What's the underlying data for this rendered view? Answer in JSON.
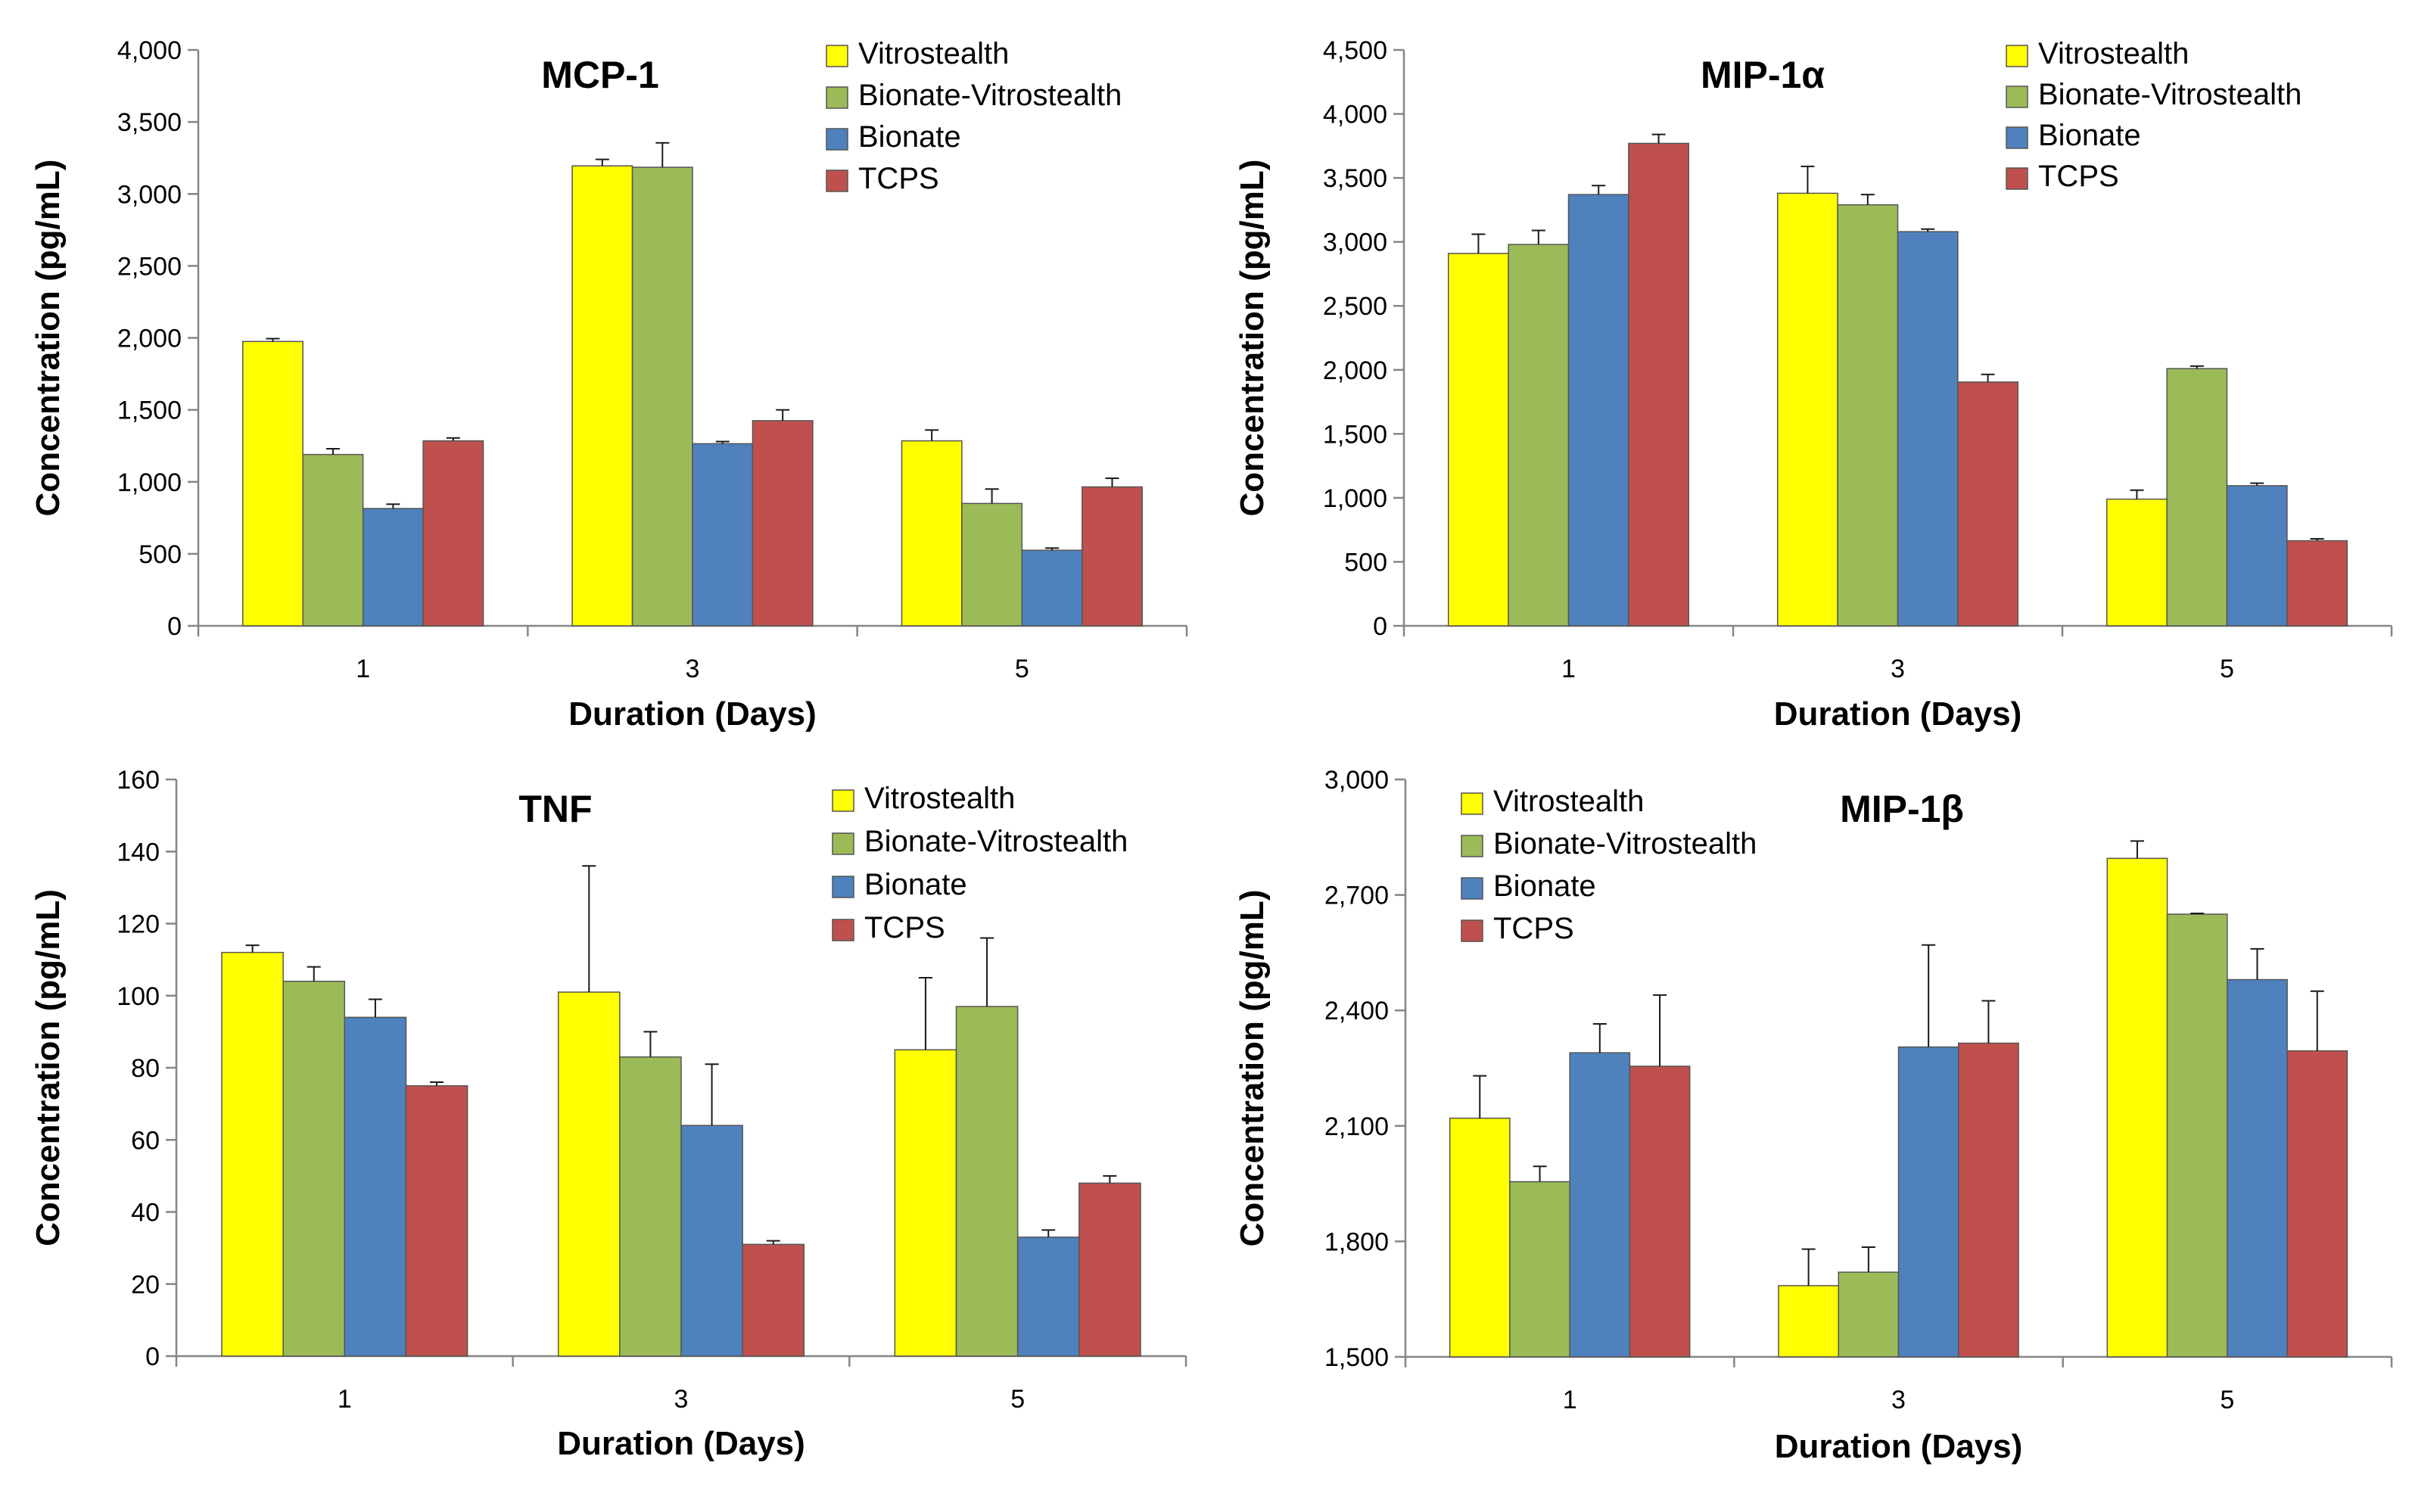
{
  "figure": {
    "colors": {
      "Vitrostealth": "#FFFF00",
      "Bionate-Vitrostealth": "#9BBB59",
      "Bionate": "#4F81BD",
      "TCPS": "#C0504D"
    },
    "charts": [
      {
        "type": "bar",
        "title": "MCP-1",
        "xlabel": "Duration (Days)",
        "ylabel": "Concentration (pg/mL)",
        "categories": [
          "1",
          "3",
          "5"
        ],
        "ylim": [
          0,
          4000
        ],
        "yticks": [
          "0",
          "500",
          "1,000",
          "1,500",
          "2,000",
          "2,500",
          "3,000",
          "3,500",
          "4,000"
        ],
        "legend_position": "top-right",
        "series": [
          {
            "name": "Vitrostealth",
            "values": [
              1975,
              3195,
              1285
            ],
            "errors": [
              20,
              45,
              75
            ]
          },
          {
            "name": "Bionate-Vitrostealth",
            "values": [
              1190,
              3185,
              850
            ],
            "errors": [
              40,
              170,
              100
            ]
          },
          {
            "name": "Bionate",
            "values": [
              815,
              1265,
              525
            ],
            "errors": [
              30,
              15,
              15
            ]
          },
          {
            "name": "TCPS",
            "values": [
              1285,
              1425,
              965
            ],
            "errors": [
              20,
              75,
              60
            ]
          }
        ]
      },
      {
        "type": "bar",
        "title": "MIP-1α",
        "xlabel": "Duration (Days)",
        "ylabel": "Concentration (pg/mL)",
        "categories": [
          "1",
          "3",
          "5"
        ],
        "ylim": [
          0,
          4500
        ],
        "yticks": [
          "0",
          "500",
          "1,000",
          "1,500",
          "2,000",
          "2,500",
          "3,000",
          "3,500",
          "4,000",
          "4,500"
        ],
        "legend_position": "top-right",
        "series": [
          {
            "name": "Vitrostealth",
            "values": [
              2910,
              3380,
              990
            ],
            "errors": [
              150,
              210,
              70
            ]
          },
          {
            "name": "Bionate-Vitrostealth",
            "values": [
              2980,
              3290,
              2010
            ],
            "errors": [
              110,
              80,
              20
            ]
          },
          {
            "name": "Bionate",
            "values": [
              3370,
              3080,
              1095
            ],
            "errors": [
              70,
              20,
              20
            ]
          },
          {
            "name": "TCPS",
            "values": [
              3770,
              1905,
              665
            ],
            "errors": [
              70,
              60,
              15
            ]
          }
        ]
      },
      {
        "type": "bar",
        "title": "TNF",
        "xlabel": "Duration (Days)",
        "ylabel": "Concentration (pg/mL)",
        "categories": [
          "1",
          "3",
          "5"
        ],
        "ylim": [
          0,
          160
        ],
        "yticks": [
          "0",
          "20",
          "40",
          "60",
          "80",
          "100",
          "120",
          "140",
          "160"
        ],
        "legend_position": "top-right",
        "series": [
          {
            "name": "Vitrostealth",
            "values": [
              112,
              101,
              85
            ],
            "errors": [
              2,
              35,
              20
            ]
          },
          {
            "name": "Bionate-Vitrostealth",
            "values": [
              104,
              83,
              97
            ],
            "errors": [
              4,
              7,
              19
            ]
          },
          {
            "name": "Bionate",
            "values": [
              94,
              64,
              33
            ],
            "errors": [
              5,
              17,
              2
            ]
          },
          {
            "name": "TCPS",
            "values": [
              75,
              31,
              48
            ],
            "errors": [
              1,
              1,
              2
            ]
          }
        ]
      },
      {
        "type": "bar",
        "title": "MIP-1β",
        "xlabel": "Duration (Days)",
        "ylabel": "Concentration (pg/mL)",
        "categories": [
          "1",
          "3",
          "5"
        ],
        "ylim": [
          1500,
          3000
        ],
        "yticks": [
          "1,500",
          "1,800",
          "2,100",
          "2,400",
          "2,700",
          "3,000"
        ],
        "legend_position": "top-left",
        "series": [
          {
            "name": "Vitrostealth",
            "values": [
              2120,
              1685,
              2795
            ],
            "errors": [
              110,
              95,
              45
            ]
          },
          {
            "name": "Bionate-Vitrostealth",
            "values": [
              1955,
              1720,
              2650
            ],
            "errors": [
              40,
              65,
              2
            ]
          },
          {
            "name": "Bionate",
            "values": [
              2290,
              2305,
              2480
            ],
            "errors": [
              75,
              265,
              80
            ]
          },
          {
            "name": "TCPS",
            "values": [
              2255,
              2315,
              2295
            ],
            "errors": [
              185,
              110,
              155
            ]
          }
        ]
      }
    ]
  }
}
